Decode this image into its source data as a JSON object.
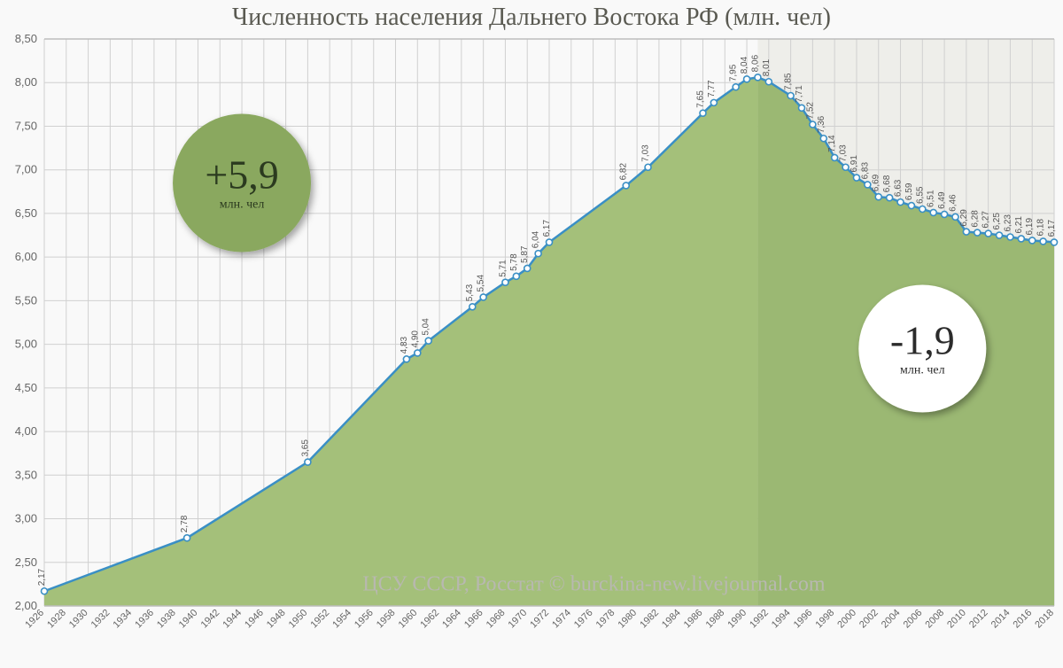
{
  "title": "Численность населения Дальнего Востока РФ (млн. чел)",
  "watermark": "ЦСУ СССР, Росстат © burckina-new.livejournal.com",
  "chart": {
    "type": "area",
    "background_color": "#f9f9f9",
    "area_fill": "#a4c07a",
    "area_fill_post": "#9bb873",
    "line_color": "#3a8fc5",
    "line_width": 2.5,
    "marker_fill": "#ffffff",
    "marker_stroke": "#3a8fc5",
    "marker_radius": 3.5,
    "grid_color": "#d0d0d0",
    "ylim": [
      2.0,
      8.5
    ],
    "ytick_step": 0.5,
    "split_year": 1991,
    "yticks": [
      "2,00",
      "2,50",
      "3,00",
      "3,50",
      "4,00",
      "4,50",
      "5,00",
      "5,50",
      "6,00",
      "6,50",
      "7,00",
      "7,50",
      "8,00",
      "8,50"
    ],
    "xticks": [
      1926,
      1928,
      1930,
      1932,
      1934,
      1936,
      1938,
      1940,
      1942,
      1944,
      1946,
      1948,
      1950,
      1952,
      1954,
      1956,
      1958,
      1960,
      1962,
      1964,
      1966,
      1968,
      1970,
      1972,
      1974,
      1976,
      1978,
      1980,
      1982,
      1984,
      1986,
      1988,
      1990,
      1992,
      1994,
      1996,
      1998,
      2000,
      2002,
      2004,
      2006,
      2008,
      2010,
      2012,
      2014,
      2016,
      2018
    ],
    "data": [
      {
        "year": 1926,
        "value": 2.17,
        "label": "2,17"
      },
      {
        "year": 1939,
        "value": 2.78,
        "label": "2,78"
      },
      {
        "year": 1950,
        "value": 3.65,
        "label": "3,65"
      },
      {
        "year": 1959,
        "value": 4.83,
        "label": "4,83"
      },
      {
        "year": 1960,
        "value": 4.9,
        "label": "4,90"
      },
      {
        "year": 1961,
        "value": 5.04,
        "label": "5,04"
      },
      {
        "year": 1965,
        "value": 5.43,
        "label": "5,43"
      },
      {
        "year": 1966,
        "value": 5.54,
        "label": "5,54"
      },
      {
        "year": 1968,
        "value": 5.71,
        "label": "5,71"
      },
      {
        "year": 1969,
        "value": 5.78,
        "label": "5,78"
      },
      {
        "year": 1970,
        "value": 5.87,
        "label": "5,87"
      },
      {
        "year": 1971,
        "value": 6.04,
        "label": "6,04"
      },
      {
        "year": 1972,
        "value": 6.17,
        "label": "6,17"
      },
      {
        "year": 1979,
        "value": 6.82,
        "label": "6,82"
      },
      {
        "year": 1981,
        "value": 7.03,
        "label": "7,03"
      },
      {
        "year": 1986,
        "value": 7.65,
        "label": "7,65"
      },
      {
        "year": 1987,
        "value": 7.77,
        "label": "7,77"
      },
      {
        "year": 1989,
        "value": 7.95,
        "label": "7,95"
      },
      {
        "year": 1990,
        "value": 8.04,
        "label": "8,04"
      },
      {
        "year": 1991,
        "value": 8.06,
        "label": "8,06"
      },
      {
        "year": 1992,
        "value": 8.01,
        "label": "8,01"
      },
      {
        "year": 1994,
        "value": 7.85,
        "label": "7,85"
      },
      {
        "year": 1995,
        "value": 7.71,
        "label": "7,71"
      },
      {
        "year": 1996,
        "value": 7.52,
        "label": "7,52"
      },
      {
        "year": 1997,
        "value": 7.36,
        "label": "7,36"
      },
      {
        "year": 1998,
        "value": 7.14,
        "label": "7,14"
      },
      {
        "year": 1999,
        "value": 7.03,
        "label": "7,03"
      },
      {
        "year": 2000,
        "value": 6.91,
        "label": "6,91"
      },
      {
        "year": 2001,
        "value": 6.83,
        "label": "6,83"
      },
      {
        "year": 2002,
        "value": 6.69,
        "label": "6,69"
      },
      {
        "year": 2003,
        "value": 6.68,
        "label": "6,68"
      },
      {
        "year": 2004,
        "value": 6.63,
        "label": "6,63"
      },
      {
        "year": 2005,
        "value": 6.59,
        "label": "6,59"
      },
      {
        "year": 2006,
        "value": 6.55,
        "label": "6,55"
      },
      {
        "year": 2007,
        "value": 6.51,
        "label": "6,51"
      },
      {
        "year": 2008,
        "value": 6.49,
        "label": "6,49"
      },
      {
        "year": 2009,
        "value": 6.46,
        "label": "6,46"
      },
      {
        "year": 2010,
        "value": 6.29,
        "label": "6,29"
      },
      {
        "year": 2011,
        "value": 6.28,
        "label": "6,28"
      },
      {
        "year": 2012,
        "value": 6.27,
        "label": "6,27"
      },
      {
        "year": 2013,
        "value": 6.25,
        "label": "6,25"
      },
      {
        "year": 2014,
        "value": 6.23,
        "label": "6,23"
      },
      {
        "year": 2015,
        "value": 6.21,
        "label": "6,21"
      },
      {
        "year": 2016,
        "value": 6.19,
        "label": "6,19"
      },
      {
        "year": 2017,
        "value": 6.18,
        "label": "6,18"
      },
      {
        "year": 2018,
        "value": 6.17,
        "label": "6,17"
      }
    ]
  },
  "callouts": {
    "growth": {
      "value": "+5,9",
      "unit": "млн. чел",
      "bg": "#8aa85f",
      "fg": "#2b3a1f"
    },
    "decline": {
      "value": "-1,9",
      "unit": "млн. чел",
      "bg": "#ffffff",
      "fg": "#2b2b2b"
    }
  }
}
